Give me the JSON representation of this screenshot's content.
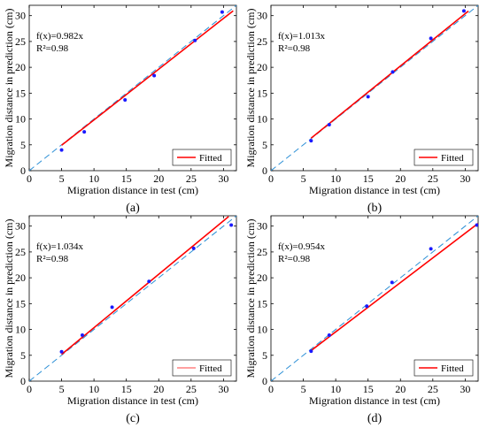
{
  "chart_data": [
    {
      "type": "scatter",
      "panel_label": "(a)",
      "xlabel": "Migration distance in test (cm)",
      "ylabel": "Migration distance in prediction (cm)",
      "xlim": [
        0,
        32
      ],
      "ylim": [
        0,
        32
      ],
      "xticks": [
        0,
        5,
        10,
        15,
        20,
        25,
        30
      ],
      "yticks": [
        0,
        5,
        10,
        15,
        20,
        25,
        30
      ],
      "annotation_fx": "f(x)=0.982x",
      "annotation_r2": "R²=0.98",
      "legend": "Fitted",
      "legend_position": "bottom-right",
      "slope": 0.982,
      "fit_x": [
        5,
        31.5
      ],
      "fitted_line_width": 1.6,
      "points": {
        "x": [
          5.0,
          8.5,
          14.8,
          19.3,
          25.6,
          29.8
        ],
        "y": [
          4.0,
          7.5,
          13.7,
          18.4,
          25.2,
          30.7
        ]
      }
    },
    {
      "type": "scatter",
      "panel_label": "(b)",
      "xlabel": "Migration distance in test (cm)",
      "ylabel": "Migration distance in prediction (cm)",
      "xlim": [
        0,
        32
      ],
      "ylim": [
        0,
        32
      ],
      "xticks": [
        0,
        5,
        10,
        15,
        20,
        25,
        30
      ],
      "yticks": [
        0,
        5,
        10,
        15,
        20,
        25,
        30
      ],
      "annotation_fx": "f(x)=1.013x",
      "annotation_r2": "R²=0.98",
      "legend": "Fitted",
      "legend_position": "bottom-right",
      "slope": 1.013,
      "fit_x": [
        6.2,
        30.5
      ],
      "fitted_line_width": 1.6,
      "points": {
        "x": [
          6.2,
          9.0,
          15.0,
          18.8,
          24.7,
          29.8
        ],
        "y": [
          5.8,
          8.9,
          14.3,
          19.1,
          25.6,
          30.9
        ]
      }
    },
    {
      "type": "scatter",
      "panel_label": "(c)",
      "xlabel": "Migration distance in test (cm)",
      "ylabel": "Migration distance in prediction (cm)",
      "xlim": [
        0,
        32
      ],
      "ylim": [
        0,
        32
      ],
      "xticks": [
        0,
        5,
        10,
        15,
        20,
        25,
        30
      ],
      "yticks": [
        0,
        5,
        10,
        15,
        20,
        25,
        30
      ],
      "annotation_fx": "f(x)=1.034x",
      "annotation_r2": "R²=0.98",
      "legend": "Fitted",
      "legend_position": "bottom-right",
      "slope": 1.034,
      "fit_x": [
        5,
        30.8
      ],
      "fitted_line_width": 1.6,
      "legend_line_width": 0.8,
      "points": {
        "x": [
          5.0,
          8.2,
          12.8,
          18.5,
          25.4,
          31.2
        ],
        "y": [
          5.7,
          8.9,
          14.3,
          19.3,
          25.7,
          30.2
        ]
      }
    },
    {
      "type": "scatter",
      "panel_label": "(d)",
      "xlabel": "Migration distance in test (cm)",
      "ylabel": "Migration distance in prediction (cm)",
      "xlim": [
        0,
        32
      ],
      "ylim": [
        0,
        32
      ],
      "xticks": [
        0,
        5,
        10,
        15,
        20,
        25,
        30
      ],
      "yticks": [
        0,
        5,
        10,
        15,
        20,
        25,
        30
      ],
      "annotation_fx": "f(x)=0.954x",
      "annotation_r2": "R²=0.98",
      "legend": "Fitted",
      "legend_position": "bottom-right",
      "slope": 0.954,
      "fit_x": [
        6.2,
        32
      ],
      "fitted_line_width": 1.6,
      "points": {
        "x": [
          6.2,
          9.0,
          14.8,
          18.7,
          24.7,
          31.8
        ],
        "y": [
          5.8,
          8.9,
          14.5,
          19.1,
          25.6,
          30.2
        ]
      }
    }
  ],
  "colors": {
    "fitted": "#ff0000",
    "points": "#1a1aff",
    "reference": "#2b8fd6",
    "axes": "#000000"
  }
}
